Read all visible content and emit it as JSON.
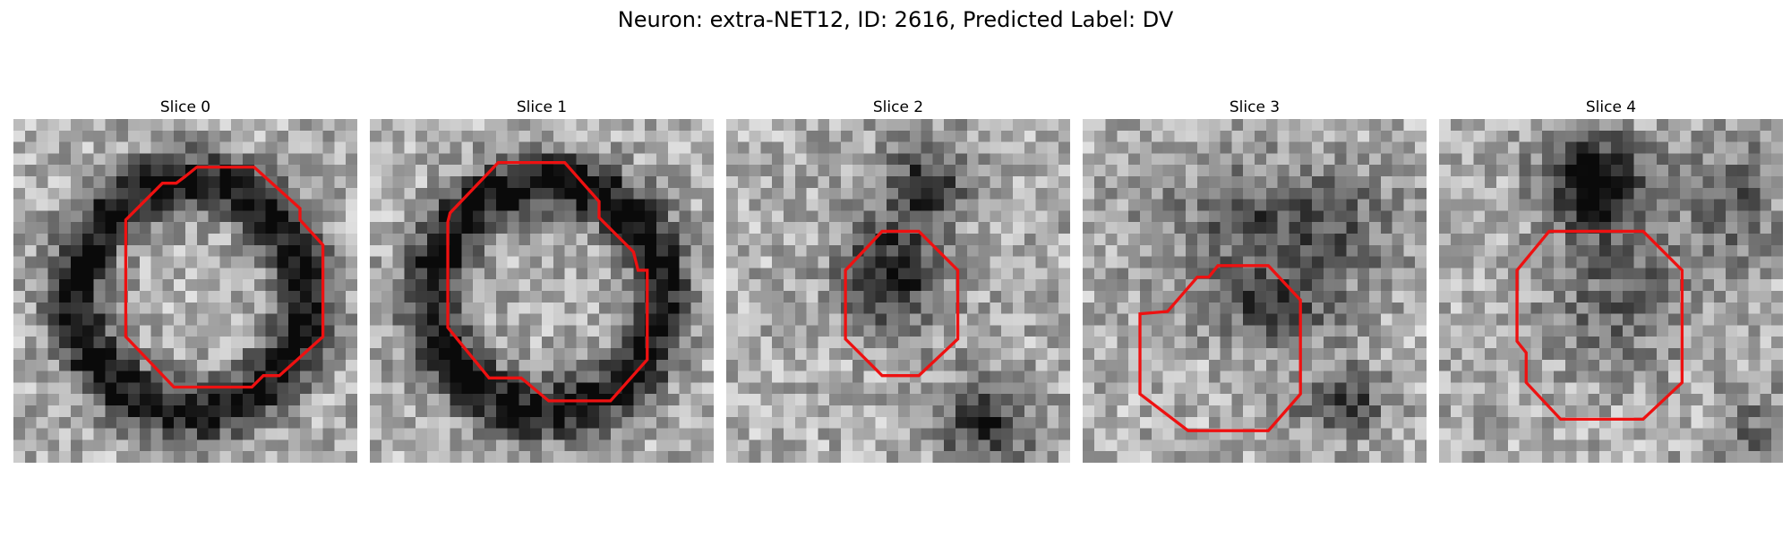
{
  "figure": {
    "title": "Neuron: extra-NET12, ID: 2616, Predicted Label: DV"
  },
  "contour_color": "#ee1111",
  "panels": [
    {
      "title": "Slice 0",
      "style": "ring",
      "contour": [
        [
          150,
          50
        ],
        [
          160,
          42
        ],
        [
          210,
          42
        ],
        [
          250,
          78
        ],
        [
          250,
          88
        ],
        [
          270,
          110
        ],
        [
          270,
          190
        ],
        [
          232,
          224
        ],
        [
          218,
          224
        ],
        [
          208,
          234
        ],
        [
          140,
          234
        ],
        [
          98,
          190
        ],
        [
          98,
          88
        ],
        [
          130,
          56
        ],
        [
          142,
          56
        ]
      ]
    },
    {
      "title": "Slice 1",
      "style": "ring",
      "contour": [
        [
          70,
          82
        ],
        [
          112,
          38
        ],
        [
          170,
          38
        ],
        [
          200,
          72
        ],
        [
          200,
          86
        ],
        [
          230,
          116
        ],
        [
          234,
          132
        ],
        [
          242,
          132
        ],
        [
          242,
          210
        ],
        [
          210,
          246
        ],
        [
          156,
          246
        ],
        [
          132,
          226
        ],
        [
          104,
          226
        ],
        [
          68,
          182
        ],
        [
          68,
          90
        ]
      ]
    },
    {
      "title": "Slice 2",
      "style": "blob",
      "contour": [
        [
          136,
          98
        ],
        [
          168,
          98
        ],
        [
          202,
          132
        ],
        [
          202,
          192
        ],
        [
          168,
          224
        ],
        [
          136,
          224
        ],
        [
          104,
          192
        ],
        [
          104,
          132
        ]
      ]
    },
    {
      "title": "Slice 3",
      "style": "fold",
      "contour": [
        [
          74,
          168
        ],
        [
          100,
          138
        ],
        [
          110,
          138
        ],
        [
          118,
          128
        ],
        [
          162,
          128
        ],
        [
          190,
          158
        ],
        [
          190,
          240
        ],
        [
          162,
          272
        ],
        [
          92,
          272
        ],
        [
          50,
          240
        ],
        [
          50,
          170
        ]
      ]
    },
    {
      "title": "Slice 4",
      "style": "body",
      "contour": [
        [
          96,
          98
        ],
        [
          178,
          98
        ],
        [
          212,
          132
        ],
        [
          212,
          230
        ],
        [
          178,
          262
        ],
        [
          106,
          262
        ],
        [
          76,
          230
        ],
        [
          76,
          204
        ],
        [
          68,
          194
        ],
        [
          68,
          132
        ]
      ]
    }
  ]
}
